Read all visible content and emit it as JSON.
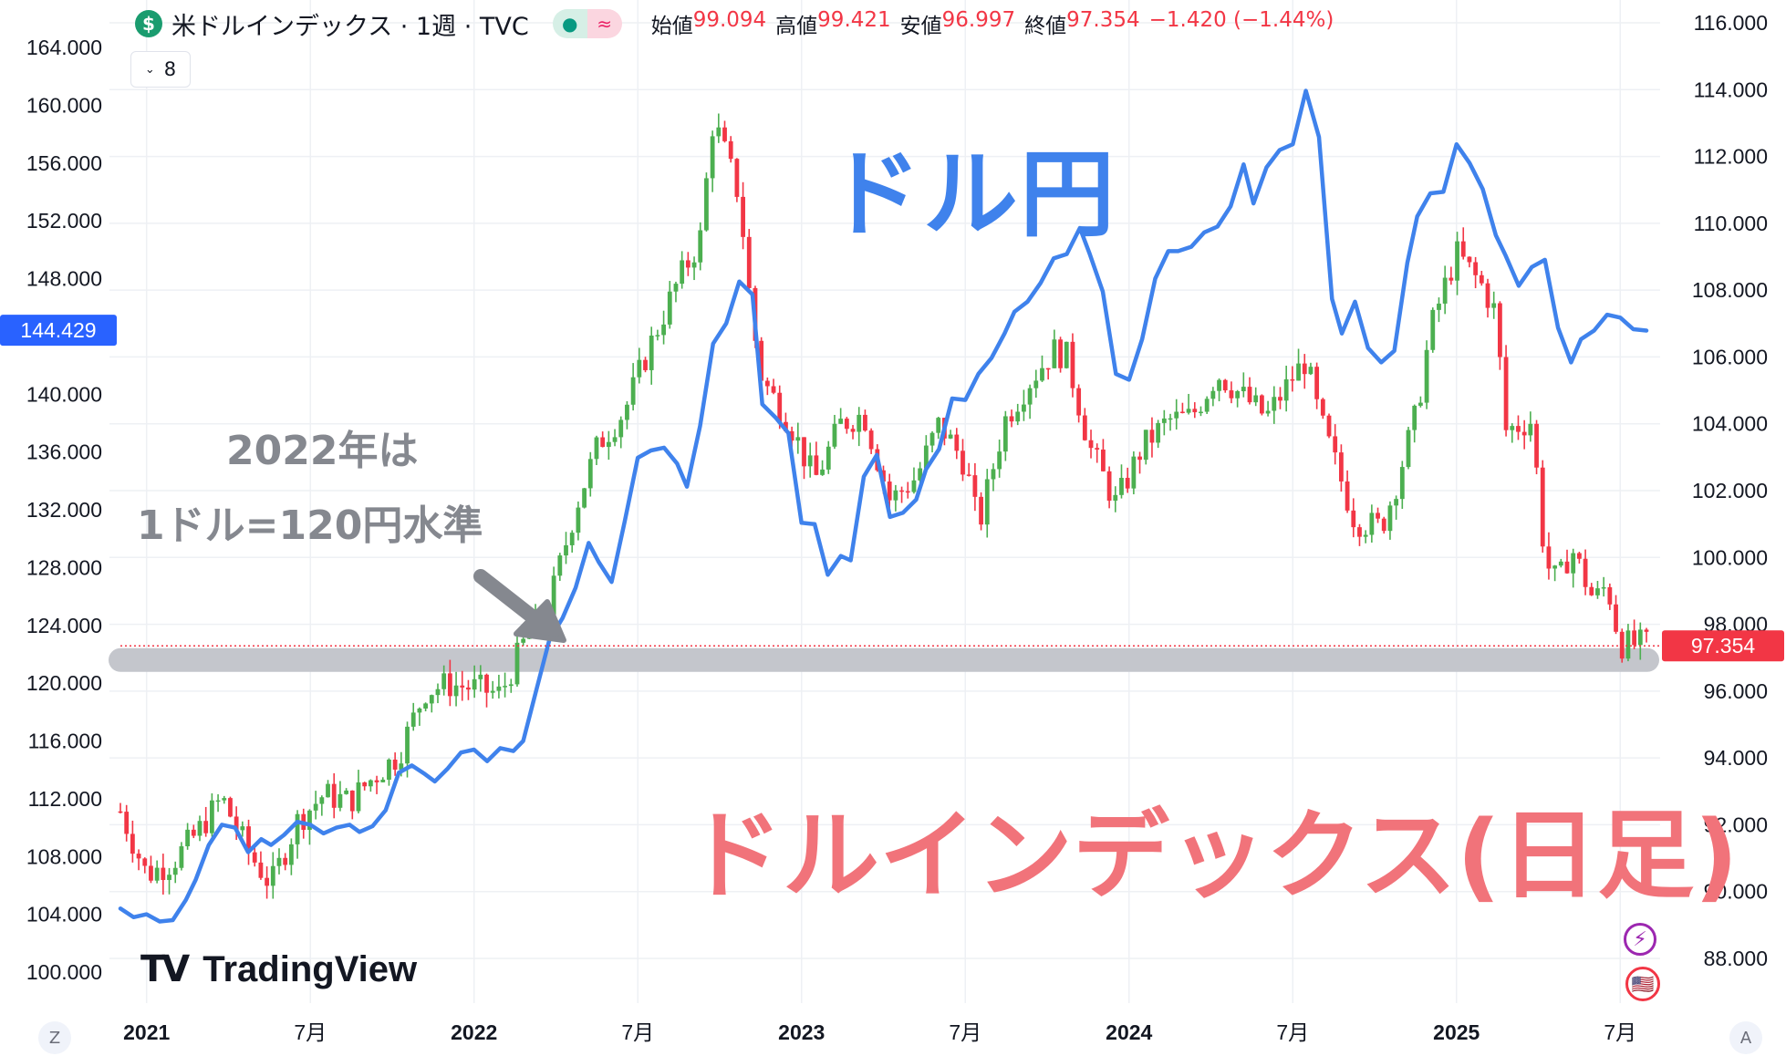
{
  "header": {
    "symbol_icon": "$",
    "symbol_title": "米ドルインデックス · 1週 · TVC",
    "status_icon": "dot-icon",
    "delay_icon": "≈",
    "ohlc": {
      "open_label": "始値",
      "open": "99.094",
      "high_label": "高値",
      "high": "99.421",
      "low_label": "安値",
      "low": "96.997",
      "close_label": "終値",
      "close": "97.354",
      "change": "−1.420 (−1.44%)"
    },
    "series_toggle": "8"
  },
  "branding": {
    "logo_text": "TradingView",
    "logo_mark": "TV"
  },
  "annotations": {
    "usdjpy": "ドル円",
    "dxy": "ドルインデックス(日足)",
    "note_line1": "2022年は",
    "note_line2": "1ドル=120円水準"
  },
  "corner_buttons": {
    "left": "Z",
    "right": "A"
  },
  "side_icons": {
    "bolt": "⚡",
    "flag": "🇺🇸"
  },
  "colors": {
    "up": "#4caf50",
    "down": "#f23645",
    "usdjpy_line": "#3f82ec",
    "highlight_band": "#c4c6cc",
    "price_tag_right": "#f23645",
    "price_tag_left": "#2962ff"
  },
  "chart_data": {
    "type": "line",
    "x_labels": [
      "2021",
      "7月",
      "2022",
      "7月",
      "2023",
      "7月",
      "2024",
      "7月",
      "2025",
      "7月"
    ],
    "x_label_bold": [
      true,
      false,
      true,
      false,
      true,
      false,
      true,
      false,
      true,
      false
    ],
    "left_axis": {
      "ticks": [
        "164.000",
        "160.000",
        "156.000",
        "152.000",
        "148.000",
        "140.000",
        "136.000",
        "132.000",
        "128.000",
        "124.000",
        "120.000",
        "116.000",
        "112.000",
        "108.000",
        "104.000",
        "100.000"
      ],
      "range": [
        98.5,
        166.5
      ],
      "current_label": "144.429",
      "current_value": 144.429
    },
    "right_axis": {
      "ticks": [
        "116.000",
        "114.000",
        "112.000",
        "110.000",
        "108.000",
        "106.000",
        "104.000",
        "102.000",
        "100.000",
        "98.000",
        "96.000",
        "94.000",
        "92.000",
        "90.000",
        "88.000"
      ],
      "range": [
        87.0,
        116.5
      ],
      "last_label": "97.354",
      "last_value": 97.354
    },
    "highlight_level_right": 96.93,
    "series": [
      {
        "type": "line",
        "axis": "left",
        "points": [
          [
            2020.92,
            104.4
          ],
          [
            2020.96,
            103.8
          ],
          [
            2021.0,
            104.0
          ],
          [
            2021.04,
            103.5
          ],
          [
            2021.08,
            103.6
          ],
          [
            2021.12,
            105.0
          ],
          [
            2021.15,
            106.4
          ],
          [
            2021.19,
            108.8
          ],
          [
            2021.23,
            110.2
          ],
          [
            2021.27,
            110.0
          ],
          [
            2021.31,
            108.3
          ],
          [
            2021.35,
            109.2
          ],
          [
            2021.38,
            108.8
          ],
          [
            2021.42,
            109.5
          ],
          [
            2021.46,
            110.4
          ],
          [
            2021.5,
            110.2
          ],
          [
            2021.54,
            109.6
          ],
          [
            2021.58,
            110.0
          ],
          [
            2021.62,
            110.2
          ],
          [
            2021.65,
            109.7
          ],
          [
            2021.69,
            110.1
          ],
          [
            2021.73,
            111.2
          ],
          [
            2021.77,
            113.8
          ],
          [
            2021.81,
            114.3
          ],
          [
            2021.85,
            113.7
          ],
          [
            2021.88,
            113.2
          ],
          [
            2021.92,
            114.1
          ],
          [
            2021.96,
            115.2
          ],
          [
            2022.0,
            115.4
          ],
          [
            2022.04,
            114.6
          ],
          [
            2022.08,
            115.5
          ],
          [
            2022.12,
            115.3
          ],
          [
            2022.15,
            116.0
          ],
          [
            2022.19,
            119.5
          ],
          [
            2022.23,
            123.0
          ],
          [
            2022.27,
            124.5
          ],
          [
            2022.31,
            126.6
          ],
          [
            2022.35,
            129.7
          ],
          [
            2022.38,
            128.4
          ],
          [
            2022.42,
            127.0
          ],
          [
            2022.46,
            131.2
          ],
          [
            2022.5,
            135.6
          ],
          [
            2022.54,
            136.1
          ],
          [
            2022.58,
            136.3
          ],
          [
            2022.62,
            135.2
          ],
          [
            2022.65,
            133.6
          ],
          [
            2022.69,
            137.8
          ],
          [
            2022.73,
            143.5
          ],
          [
            2022.77,
            144.9
          ],
          [
            2022.81,
            147.8
          ],
          [
            2022.85,
            146.9
          ],
          [
            2022.88,
            139.3
          ],
          [
            2022.92,
            138.4
          ],
          [
            2022.96,
            137.3
          ],
          [
            2023.0,
            131.1
          ],
          [
            2023.04,
            131.0
          ],
          [
            2023.08,
            127.5
          ],
          [
            2023.12,
            128.8
          ],
          [
            2023.15,
            128.5
          ],
          [
            2023.19,
            134.3
          ],
          [
            2023.23,
            135.8
          ],
          [
            2023.27,
            131.5
          ],
          [
            2023.31,
            131.8
          ],
          [
            2023.35,
            132.7
          ],
          [
            2023.38,
            134.8
          ],
          [
            2023.42,
            136.2
          ],
          [
            2023.46,
            139.7
          ],
          [
            2023.5,
            139.6
          ],
          [
            2023.54,
            141.4
          ],
          [
            2023.58,
            142.5
          ],
          [
            2023.62,
            144.2
          ],
          [
            2023.65,
            145.7
          ],
          [
            2023.69,
            146.4
          ],
          [
            2023.73,
            147.7
          ],
          [
            2023.77,
            149.4
          ],
          [
            2023.81,
            149.7
          ],
          [
            2023.85,
            151.5
          ],
          [
            2023.88,
            149.7
          ],
          [
            2023.92,
            147.1
          ],
          [
            2023.96,
            141.4
          ],
          [
            2024.0,
            141.0
          ],
          [
            2024.04,
            143.8
          ],
          [
            2024.08,
            148.0
          ],
          [
            2024.12,
            149.9
          ],
          [
            2024.15,
            149.9
          ],
          [
            2024.19,
            150.2
          ],
          [
            2024.23,
            151.2
          ],
          [
            2024.27,
            151.6
          ],
          [
            2024.31,
            153.0
          ],
          [
            2024.35,
            155.9
          ],
          [
            2024.38,
            153.2
          ],
          [
            2024.42,
            155.7
          ],
          [
            2024.46,
            156.9
          ],
          [
            2024.5,
            157.3
          ],
          [
            2024.54,
            161.0
          ],
          [
            2024.58,
            157.8
          ],
          [
            2024.62,
            146.6
          ],
          [
            2024.65,
            144.2
          ],
          [
            2024.69,
            146.4
          ],
          [
            2024.73,
            143.2
          ],
          [
            2024.77,
            142.2
          ],
          [
            2024.81,
            143.0
          ],
          [
            2024.85,
            149.1
          ],
          [
            2024.88,
            152.3
          ],
          [
            2024.92,
            153.9
          ],
          [
            2024.96,
            154.0
          ],
          [
            2025.0,
            157.3
          ],
          [
            2025.04,
            156.0
          ],
          [
            2025.08,
            154.2
          ],
          [
            2025.12,
            151.0
          ],
          [
            2025.15,
            149.6
          ],
          [
            2025.19,
            147.5
          ],
          [
            2025.23,
            148.8
          ],
          [
            2025.27,
            149.3
          ],
          [
            2025.31,
            144.6
          ],
          [
            2025.35,
            142.2
          ],
          [
            2025.38,
            143.8
          ],
          [
            2025.42,
            144.4
          ],
          [
            2025.46,
            145.5
          ],
          [
            2025.5,
            145.3
          ],
          [
            2025.54,
            144.5
          ],
          [
            2025.58,
            144.4
          ]
        ]
      },
      {
        "type": "candlestick",
        "axis": "right",
        "summary_points": [
          [
            2020.92,
            92.4
          ],
          [
            2021.0,
            90.5
          ],
          [
            2021.08,
            90.9
          ],
          [
            2021.15,
            91.7
          ],
          [
            2021.23,
            92.8
          ],
          [
            2021.31,
            91.2
          ],
          [
            2021.38,
            90.2
          ],
          [
            2021.46,
            92.1
          ],
          [
            2021.54,
            92.9
          ],
          [
            2021.62,
            92.7
          ],
          [
            2021.69,
            93.4
          ],
          [
            2021.77,
            94.1
          ],
          [
            2021.85,
            96.0
          ],
          [
            2021.92,
            96.2
          ],
          [
            2022.0,
            96.1
          ],
          [
            2022.08,
            95.9
          ],
          [
            2022.15,
            97.4
          ],
          [
            2022.23,
            98.6
          ],
          [
            2022.31,
            101.5
          ],
          [
            2022.38,
            103.4
          ],
          [
            2022.46,
            104.4
          ],
          [
            2022.54,
            106.4
          ],
          [
            2022.62,
            108.2
          ],
          [
            2022.69,
            109.5
          ],
          [
            2022.73,
            113.1
          ],
          [
            2022.77,
            112.0
          ],
          [
            2022.81,
            110.8
          ],
          [
            2022.85,
            107.0
          ],
          [
            2022.88,
            105.3
          ],
          [
            2022.96,
            104.1
          ],
          [
            2023.04,
            102.3
          ],
          [
            2023.12,
            104.0
          ],
          [
            2023.19,
            104.3
          ],
          [
            2023.27,
            101.7
          ],
          [
            2023.35,
            102.4
          ],
          [
            2023.42,
            104.0
          ],
          [
            2023.5,
            102.8
          ],
          [
            2023.54,
            100.9
          ],
          [
            2023.62,
            104.1
          ],
          [
            2023.69,
            105.2
          ],
          [
            2023.77,
            106.2
          ],
          [
            2023.81,
            106.0
          ],
          [
            2023.88,
            103.3
          ],
          [
            2023.96,
            101.6
          ],
          [
            2024.04,
            103.3
          ],
          [
            2024.12,
            104.1
          ],
          [
            2024.19,
            104.2
          ],
          [
            2024.27,
            105.5
          ],
          [
            2024.35,
            104.8
          ],
          [
            2024.42,
            104.2
          ],
          [
            2024.5,
            105.4
          ],
          [
            2024.54,
            105.9
          ],
          [
            2024.58,
            104.2
          ],
          [
            2024.62,
            103.1
          ],
          [
            2024.69,
            101.1
          ],
          [
            2024.77,
            100.9
          ],
          [
            2024.81,
            102.0
          ],
          [
            2024.88,
            104.4
          ],
          [
            2024.92,
            106.8
          ],
          [
            2024.96,
            108.0
          ],
          [
            2025.0,
            109.1
          ],
          [
            2025.04,
            108.6
          ],
          [
            2025.08,
            108.1
          ],
          [
            2025.12,
            107.3
          ],
          [
            2025.15,
            103.8
          ],
          [
            2025.23,
            104.1
          ],
          [
            2025.27,
            99.9
          ],
          [
            2025.31,
            99.2
          ],
          [
            2025.35,
            100.3
          ],
          [
            2025.42,
            98.7
          ],
          [
            2025.46,
            99.2
          ],
          [
            2025.5,
            97.4
          ]
        ]
      }
    ]
  }
}
